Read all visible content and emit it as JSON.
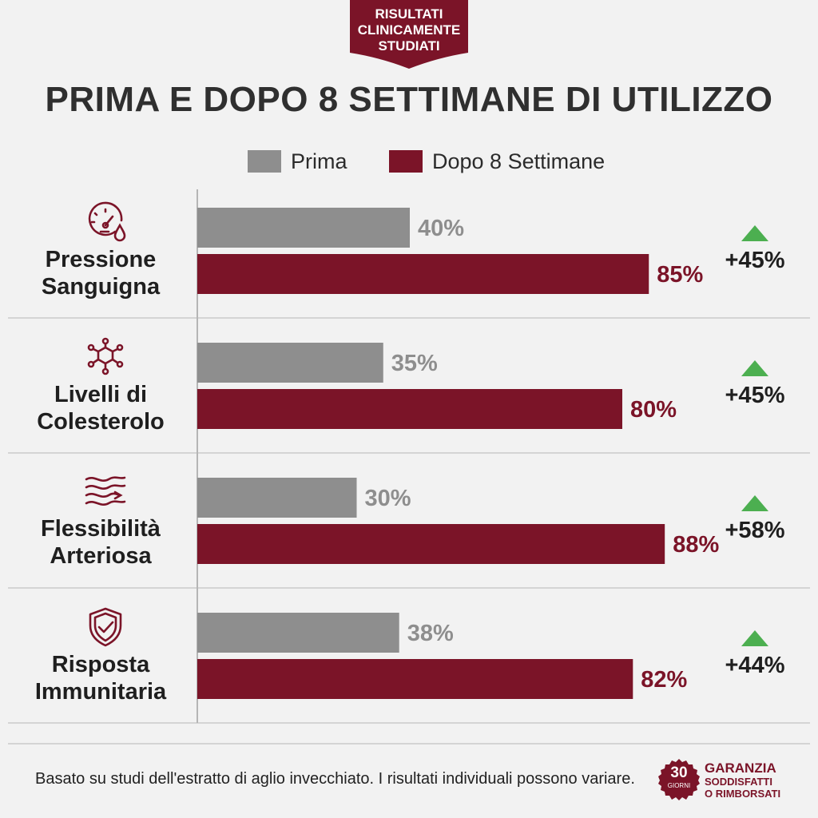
{
  "colors": {
    "before": "#8e8e8e",
    "after": "#7b1428",
    "up_arrow": "#4caf50",
    "background": "#f2f2f2"
  },
  "badge": {
    "text": "RISULTATI\nCLINICAMENTE\nSTUDIATI"
  },
  "legend": {
    "before_label": "Prima",
    "after_label": "Dopo 8 Settimane"
  },
  "chart_data": {
    "type": "bar",
    "orientation": "horizontal",
    "title": "PRIMA E DOPO 8 SETTIMANE DI UTILIZZO",
    "categories": [
      "Pressione Sanguigna",
      "Livelli di Colesterolo",
      "Flessibilità Arteriosa",
      "Risposta Immunitaria"
    ],
    "series": [
      {
        "name": "Prima",
        "values": [
          40,
          35,
          30,
          38
        ],
        "labels": [
          "40%",
          "35%",
          "30%",
          "38%"
        ]
      },
      {
        "name": "Dopo 8 Settimane",
        "values": [
          85,
          80,
          88,
          82
        ],
        "labels": [
          "85%",
          "80%",
          "88%",
          "82%"
        ]
      }
    ],
    "changes": [
      "+45%",
      "+45%",
      "+58%",
      "+44%"
    ],
    "xlim": [
      0,
      100
    ],
    "legend_position": "top",
    "grid": false
  },
  "rows": [
    {
      "label_lines": [
        "Pressione",
        "Sanguigna"
      ],
      "icon": "gauge-blood-drop-icon"
    },
    {
      "label_lines": [
        "Livelli di",
        "Colesterolo"
      ],
      "icon": "molecule-icon"
    },
    {
      "label_lines": [
        "Flessibilità",
        "Arteriosa"
      ],
      "icon": "artery-flow-icon"
    },
    {
      "label_lines": [
        "Risposta",
        "Immunitaria"
      ],
      "icon": "shield-check-icon"
    }
  ],
  "footer": {
    "note": "Basato su studi dell'estratto di aglio invecchiato. I risultati individuali possono variare.",
    "seal_number": "30",
    "seal_unit": "GIORNI",
    "guarantee_title": "GARANZIA",
    "guarantee_line1": "SODDISFATTI",
    "guarantee_line2": "O RIMBORSATI"
  }
}
